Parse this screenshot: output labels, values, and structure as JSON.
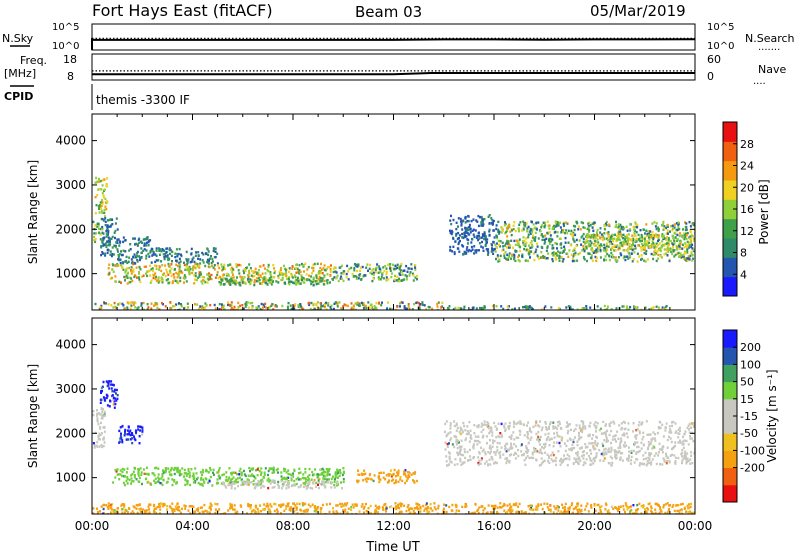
{
  "header": {
    "station": "Fort Hays East (fitACF)",
    "beam": "Beam 03",
    "date": "05/Mar/2019"
  },
  "colors": {
    "power": [
      "#1a1aff",
      "#2456b0",
      "#2f8a6a",
      "#3fa04a",
      "#8fcf3a",
      "#f0d020",
      "#f59a10",
      "#f06010",
      "#e81010"
    ],
    "velocity": [
      "#e81010",
      "#f06010",
      "#f5a010",
      "#f0c020",
      "#c8c8c0",
      "#c8c8c0",
      "#6fd03a",
      "#3fa060",
      "#2456b0",
      "#1a1aff"
    ]
  },
  "panel_labels": {
    "nsky": "N.Sky",
    "nsearch": "N.Search",
    "nsearch_marker": ".......",
    "freq_line1": "Freq.",
    "freq_line2": "[MHz]",
    "nave": "Nave",
    "nave_marker": "....",
    "cpid": "CPID",
    "cpid_text": "themis -3300 IF"
  },
  "chart_data": [
    {
      "type": "line",
      "name": "noise-panel",
      "yticks_left": [
        "10^5",
        "10^0"
      ],
      "yticks_right": [
        "10^5",
        "10^0"
      ],
      "series": [
        {
          "name": "N.Sky",
          "style": "solid",
          "x": [
            0,
            1.5,
            3,
            6,
            9,
            12,
            14,
            16,
            18,
            20,
            22,
            24
          ],
          "y_log": [
            0.45,
            0.45,
            0.45,
            0.45,
            0.45,
            0.45,
            0.55,
            0.55,
            0.5,
            0.55,
            0.55,
            0.6
          ]
        },
        {
          "name": "N.Search",
          "style": "dotted",
          "x": [
            0,
            6,
            12,
            24
          ],
          "y_log": [
            0.8,
            0.8,
            0.8,
            0.8
          ]
        }
      ]
    },
    {
      "type": "line",
      "name": "frequency-nave-panel",
      "yticks_left": [
        "18",
        "8"
      ],
      "yticks_right": [
        "60",
        "0"
      ],
      "series": [
        {
          "name": "Freq.",
          "style": "solid",
          "x": [
            0,
            6,
            12,
            13.5,
            18,
            24
          ],
          "y": [
            10.2,
            10.2,
            10.2,
            10.7,
            10.7,
            10.7
          ]
        },
        {
          "name": "Nave",
          "style": "dotted",
          "x": [
            0,
            24
          ],
          "y": [
            21,
            21
          ]
        }
      ]
    },
    {
      "type": "heatmap",
      "name": "power",
      "ylabel": "Slant Range [km]",
      "colorbar_label": "Power [dB]",
      "colorbar_ticks": [
        4,
        8,
        12,
        16,
        20,
        24,
        28
      ],
      "yticks": [
        1000,
        2000,
        3000,
        4000
      ],
      "ylim": [
        180,
        4600
      ],
      "xlim": [
        0,
        24
      ],
      "bands": [
        {
          "t": [
            0.0,
            0.4
          ],
          "r": [
            1700,
            2200
          ],
          "power": [
            8,
            20
          ]
        },
        {
          "t": [
            0.1,
            0.6
          ],
          "r": [
            2300,
            3200
          ],
          "power": [
            12,
            24
          ]
        },
        {
          "t": [
            0.3,
            1.0
          ],
          "r": [
            1400,
            2300
          ],
          "power": [
            4,
            12
          ]
        },
        {
          "t": [
            0.5,
            2.3
          ],
          "r": [
            1650,
            1850
          ],
          "power": [
            4,
            10
          ]
        },
        {
          "t": [
            1.0,
            5.0
          ],
          "r": [
            1250,
            1600
          ],
          "power": [
            4,
            12
          ]
        },
        {
          "t": [
            0.6,
            9.5
          ],
          "r": [
            800,
            1250
          ],
          "power": [
            10,
            26
          ]
        },
        {
          "t": [
            5.0,
            9.5
          ],
          "r": [
            760,
            950
          ],
          "power": [
            8,
            16
          ]
        },
        {
          "t": [
            9.5,
            12.9
          ],
          "r": [
            850,
            1250
          ],
          "power": [
            4,
            20
          ]
        },
        {
          "t": [
            0.0,
            14.0
          ],
          "r": [
            200,
            380
          ],
          "power": [
            4,
            28
          ]
        },
        {
          "t": [
            14.0,
            23.0
          ],
          "r": [
            200,
            300
          ],
          "power": [
            4,
            20
          ]
        },
        {
          "t": [
            14.2,
            16.0
          ],
          "r": [
            1450,
            2350
          ],
          "power": [
            4,
            8
          ]
        },
        {
          "t": [
            16.0,
            24.0
          ],
          "r": [
            1300,
            2200
          ],
          "power": [
            4,
            22
          ]
        },
        {
          "t": [
            19.5,
            24.0
          ],
          "r": [
            1550,
            1900
          ],
          "power": [
            12,
            22
          ]
        }
      ]
    },
    {
      "type": "heatmap",
      "name": "velocity",
      "ylabel": "Slant Range [km]",
      "colorbar_label": "Velocity [m s⁻¹]",
      "colorbar_ticks": [
        200,
        100,
        50,
        15,
        -15,
        -50,
        -100,
        -200
      ],
      "xlabel": "Time UT",
      "xticks": [
        "00:00",
        "04:00",
        "08:00",
        "12:00",
        "16:00",
        "20:00",
        "00:00"
      ],
      "yticks": [
        1000,
        2000,
        3000,
        4000
      ],
      "ylim": [
        180,
        4600
      ],
      "xlim": [
        0,
        24
      ],
      "bands": [
        {
          "t": [
            0.0,
            0.5
          ],
          "r": [
            1700,
            2600
          ],
          "vel": "grey"
        },
        {
          "t": [
            0.3,
            1.0
          ],
          "r": [
            2600,
            3200
          ],
          "vel": "blue"
        },
        {
          "t": [
            1.0,
            2.0
          ],
          "r": [
            1800,
            2200
          ],
          "vel": "blue"
        },
        {
          "t": [
            0.8,
            10.0
          ],
          "r": [
            850,
            1250
          ],
          "vel": "green"
        },
        {
          "t": [
            5.0,
            10.0
          ],
          "r": [
            780,
            950
          ],
          "vel": "grey"
        },
        {
          "t": [
            10.5,
            12.9
          ],
          "r": [
            900,
            1200
          ],
          "vel": "orange"
        },
        {
          "t": [
            0.0,
            24.0
          ],
          "r": [
            200,
            450
          ],
          "vel": "orange"
        },
        {
          "t": [
            14.0,
            24.0
          ],
          "r": [
            1300,
            2300
          ],
          "vel": "grey"
        }
      ]
    }
  ]
}
